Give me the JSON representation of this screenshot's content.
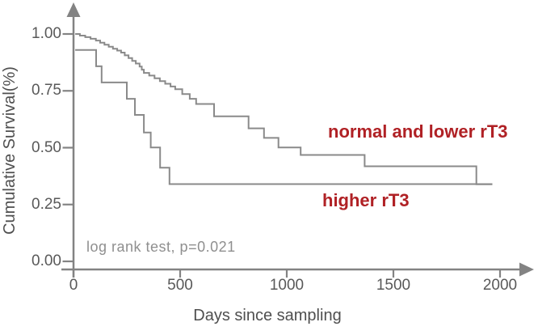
{
  "figure": {
    "y_axis_title": "Cumulative Survival(%)",
    "x_axis_title": "Days since sampling",
    "annotation": "log rank test, p=0.021",
    "labels": {
      "upper_curve": "normal and lower rT3",
      "lower_curve": "higher rT3"
    },
    "colors": {
      "curve": "#8a8a8a",
      "axis": "#838383",
      "tick_text": "#595959",
      "axis_title_text": "#4f4f4f",
      "annotation_text": "#8f8f8f",
      "label_red": "#b02125"
    }
  },
  "chart_data": {
    "type": "line",
    "subtype": "kaplan-meier-step-curves",
    "title": "",
    "xlabel": "Days since sampling",
    "ylabel": "Cumulative Survival(%)",
    "xlim": [
      0,
      2150
    ],
    "ylim": [
      0.0,
      1.08
    ],
    "grid": false,
    "legend_position": "inline-text-labels-on-plot",
    "annotation": "log rank test, p=0.021",
    "x_ticks": [
      {
        "v": 0,
        "label": "0"
      },
      {
        "v": 500,
        "label": "500"
      },
      {
        "v": 1000,
        "label": "1000"
      },
      {
        "v": 1500,
        "label": "1500"
      },
      {
        "v": 2000,
        "label": "2000"
      }
    ],
    "y_ticks": [
      {
        "v": 0.0,
        "label": "0.00"
      },
      {
        "v": 0.25,
        "label": "0.25"
      },
      {
        "v": 0.5,
        "label": "0.50"
      },
      {
        "v": 0.75,
        "label": "0.75"
      },
      {
        "v": 1.0,
        "label": "1.00"
      }
    ],
    "series": [
      {
        "name": "normal and lower rT3",
        "steps_day_survival": [
          [
            8,
            1.0
          ],
          [
            30,
            0.993
          ],
          [
            55,
            0.986
          ],
          [
            80,
            0.979
          ],
          [
            105,
            0.971
          ],
          [
            125,
            0.962
          ],
          [
            145,
            0.953
          ],
          [
            165,
            0.944
          ],
          [
            185,
            0.935
          ],
          [
            205,
            0.927
          ],
          [
            223,
            0.918
          ],
          [
            240,
            0.906
          ],
          [
            258,
            0.894
          ],
          [
            275,
            0.882
          ],
          [
            292,
            0.87
          ],
          [
            310,
            0.857
          ],
          [
            320,
            0.843
          ],
          [
            330,
            0.829
          ],
          [
            355,
            0.817
          ],
          [
            380,
            0.805
          ],
          [
            405,
            0.793
          ],
          [
            430,
            0.781
          ],
          [
            455,
            0.769
          ],
          [
            477,
            0.757
          ],
          [
            510,
            0.736
          ],
          [
            545,
            0.715
          ],
          [
            575,
            0.692
          ],
          [
            659,
            0.638
          ],
          [
            821,
            0.585
          ],
          [
            893,
            0.543
          ],
          [
            961,
            0.501
          ],
          [
            1065,
            0.468
          ],
          [
            1365,
            0.418
          ],
          [
            1889,
            0.339
          ],
          [
            1964,
            0.339
          ]
        ]
      },
      {
        "name": "higher rT3",
        "steps_day_survival": [
          [
            8,
            0.93
          ],
          [
            106,
            0.858
          ],
          [
            132,
            0.787
          ],
          [
            250,
            0.715
          ],
          [
            288,
            0.644
          ],
          [
            330,
            0.567
          ],
          [
            362,
            0.501
          ],
          [
            406,
            0.412
          ],
          [
            450,
            0.34
          ],
          [
            1964,
            0.34
          ]
        ]
      }
    ]
  }
}
